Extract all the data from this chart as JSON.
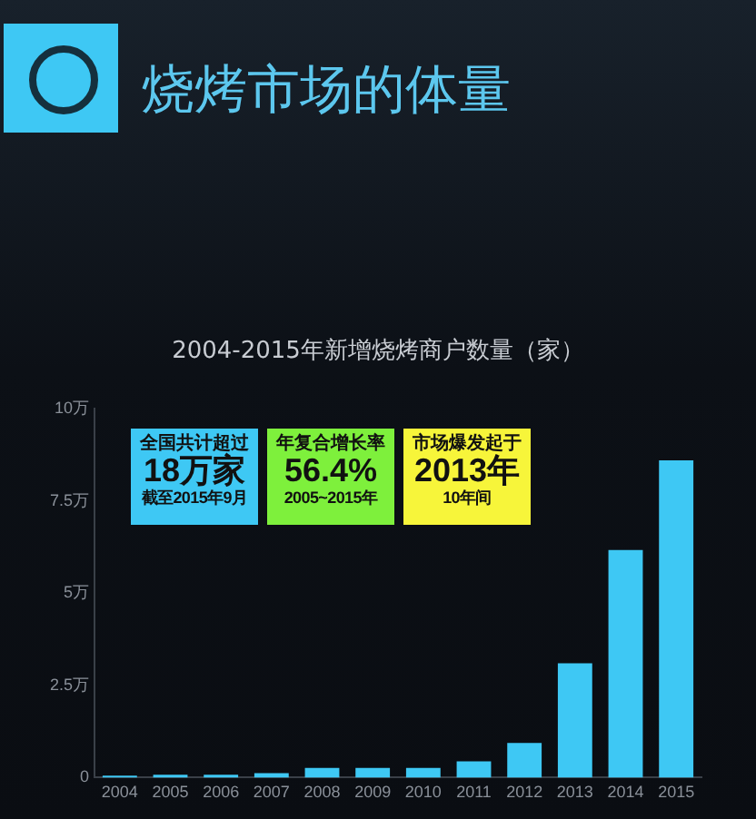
{
  "chart_data": {
    "type": "bar",
    "title": "烧烤市场的体量",
    "subtitle": "2004-2015年新增烧烤商户数量（家）",
    "categories": [
      "2004",
      "2005",
      "2006",
      "2007",
      "2008",
      "2009",
      "2010",
      "2011",
      "2012",
      "2013",
      "2014",
      "2015"
    ],
    "values": [
      0.05,
      0.08,
      0.08,
      0.12,
      0.26,
      0.26,
      0.26,
      0.44,
      0.94,
      3.1,
      6.17,
      8.6
    ],
    "color": "#3ec8f4",
    "ylim": [
      0,
      10
    ],
    "yticks": [
      0,
      {
        "value": 2.5,
        "label": "2.5万"
      },
      {
        "value": 5,
        "label": "5万"
      },
      {
        "value": 7.5,
        "label": "7.5万"
      },
      {
        "value": 10,
        "label": "10万"
      }
    ],
    "grid": false,
    "annotations": [
      "全国共计超过",
      "18万家",
      "截至2015年9月",
      "年复合增长率",
      "56.4%",
      "2005~2015年",
      "市场爆发起于",
      "2013年",
      "10年间"
    ]
  }
}
